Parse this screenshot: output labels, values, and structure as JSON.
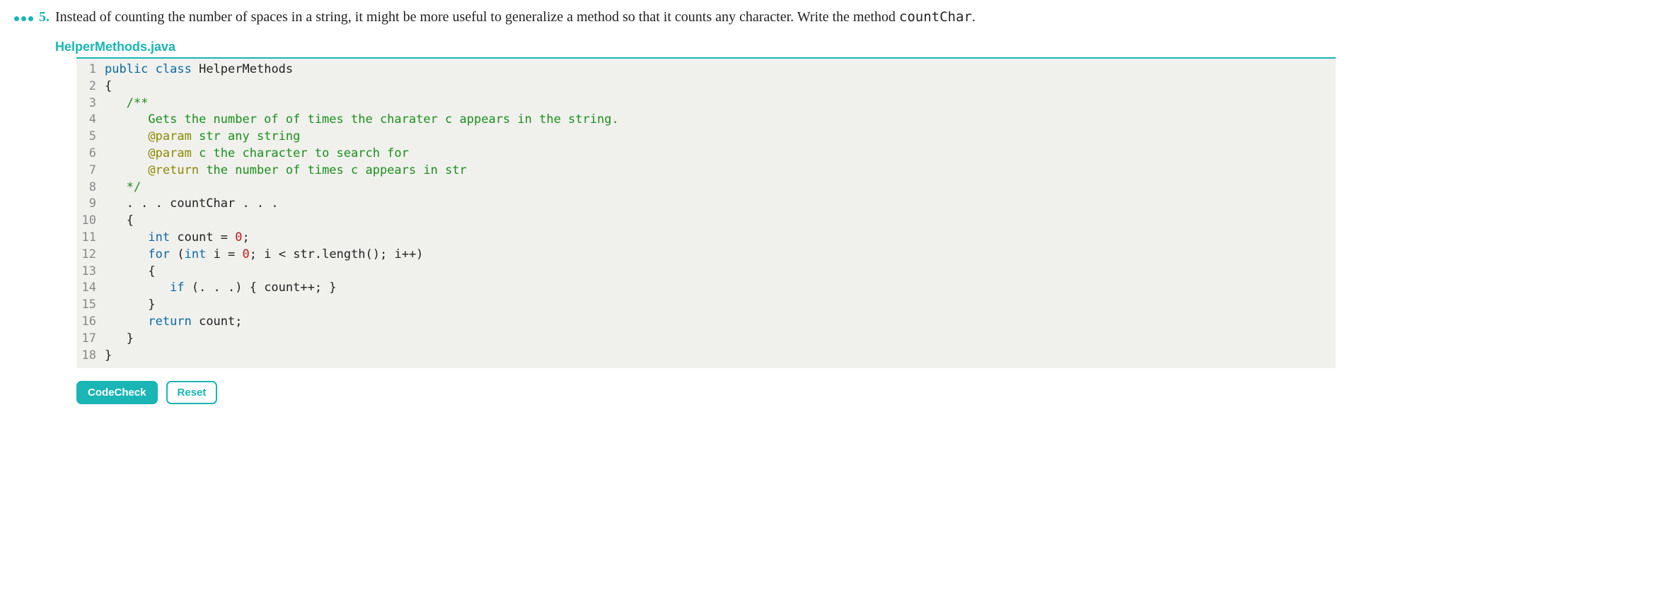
{
  "problem": {
    "number": "5.",
    "text_before": "Instead of counting the number of spaces in a string, it might be more useful to generalize a method so that it counts any character. Write the method ",
    "method_name": "countChar",
    "text_after": "."
  },
  "file": {
    "name": "HelperMethods.java"
  },
  "code": {
    "lines": [
      {
        "n": "1",
        "segments": [
          {
            "cls": "kw",
            "t": "public"
          },
          {
            "cls": "",
            "t": " "
          },
          {
            "cls": "kw",
            "t": "class"
          },
          {
            "cls": "",
            "t": " HelperMethods"
          }
        ]
      },
      {
        "n": "2",
        "segments": [
          {
            "cls": "",
            "t": "{"
          }
        ]
      },
      {
        "n": "3",
        "segments": [
          {
            "cls": "",
            "t": "   "
          },
          {
            "cls": "comment",
            "t": "/**"
          }
        ]
      },
      {
        "n": "4",
        "segments": [
          {
            "cls": "",
            "t": "      "
          },
          {
            "cls": "comment",
            "t": "Gets the number of of times the charater c appears in the string."
          }
        ]
      },
      {
        "n": "5",
        "segments": [
          {
            "cls": "",
            "t": "      "
          },
          {
            "cls": "annotation",
            "t": "@param"
          },
          {
            "cls": "comment",
            "t": " str any string"
          }
        ]
      },
      {
        "n": "6",
        "segments": [
          {
            "cls": "",
            "t": "      "
          },
          {
            "cls": "annotation",
            "t": "@param"
          },
          {
            "cls": "comment",
            "t": " c the character to search for"
          }
        ]
      },
      {
        "n": "7",
        "segments": [
          {
            "cls": "",
            "t": "      "
          },
          {
            "cls": "annotation",
            "t": "@return"
          },
          {
            "cls": "comment",
            "t": " the number of times c appears in str"
          }
        ]
      },
      {
        "n": "8",
        "segments": [
          {
            "cls": "",
            "t": "   "
          },
          {
            "cls": "comment",
            "t": "*/"
          }
        ]
      },
      {
        "n": "9",
        "segments": [
          {
            "cls": "",
            "t": "   . . . countChar . . ."
          }
        ]
      },
      {
        "n": "10",
        "segments": [
          {
            "cls": "",
            "t": "   {"
          }
        ]
      },
      {
        "n": "11",
        "segments": [
          {
            "cls": "",
            "t": "      "
          },
          {
            "cls": "kw",
            "t": "int"
          },
          {
            "cls": "",
            "t": " count = "
          },
          {
            "cls": "num",
            "t": "0"
          },
          {
            "cls": "",
            "t": ";"
          }
        ]
      },
      {
        "n": "12",
        "segments": [
          {
            "cls": "",
            "t": "      "
          },
          {
            "cls": "kw",
            "t": "for"
          },
          {
            "cls": "",
            "t": " ("
          },
          {
            "cls": "kw",
            "t": "int"
          },
          {
            "cls": "",
            "t": " i = "
          },
          {
            "cls": "num",
            "t": "0"
          },
          {
            "cls": "",
            "t": "; i < str.length(); i++)"
          }
        ]
      },
      {
        "n": "13",
        "segments": [
          {
            "cls": "",
            "t": "      {"
          }
        ]
      },
      {
        "n": "14",
        "segments": [
          {
            "cls": "",
            "t": "         "
          },
          {
            "cls": "kw",
            "t": "if"
          },
          {
            "cls": "",
            "t": " (. . .) { count++; }"
          }
        ]
      },
      {
        "n": "15",
        "segments": [
          {
            "cls": "",
            "t": "      }"
          }
        ]
      },
      {
        "n": "16",
        "segments": [
          {
            "cls": "",
            "t": "      "
          },
          {
            "cls": "kw",
            "t": "return"
          },
          {
            "cls": "",
            "t": " count;"
          }
        ]
      },
      {
        "n": "17",
        "segments": [
          {
            "cls": "",
            "t": "   }"
          }
        ]
      },
      {
        "n": "18",
        "segments": [
          {
            "cls": "",
            "t": "}"
          }
        ]
      }
    ]
  },
  "buttons": {
    "codecheck": "CodeCheck",
    "reset": "Reset"
  },
  "colors": {
    "accent": "#1ab5b5",
    "code_bg": "#f0f0ed",
    "keyword": "#0b6aa3",
    "comment": "#1a8f1a",
    "annotation": "#8a8a00",
    "number_literal": "#c41a16",
    "line_num": "#888888",
    "text": "#222222"
  }
}
